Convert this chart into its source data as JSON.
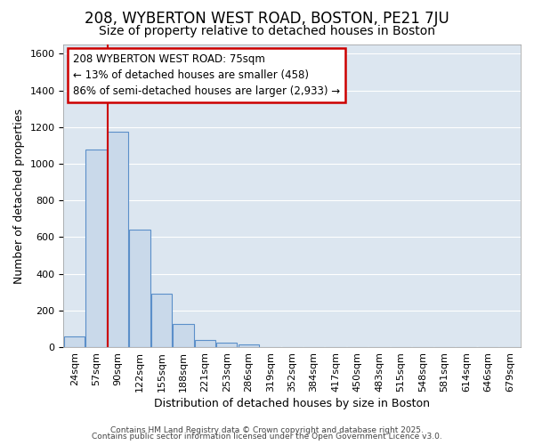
{
  "title1": "208, WYBERTON WEST ROAD, BOSTON, PE21 7JU",
  "title2": "Size of property relative to detached houses in Boston",
  "xlabel": "Distribution of detached houses by size in Boston",
  "ylabel": "Number of detached properties",
  "bin_labels": [
    "24sqm",
    "57sqm",
    "90sqm",
    "122sqm",
    "155sqm",
    "188sqm",
    "221sqm",
    "253sqm",
    "286sqm",
    "319sqm",
    "352sqm",
    "384sqm",
    "417sqm",
    "450sqm",
    "483sqm",
    "515sqm",
    "548sqm",
    "581sqm",
    "614sqm",
    "646sqm",
    "679sqm"
  ],
  "bar_heights": [
    60,
    1080,
    1175,
    640,
    290,
    125,
    40,
    25,
    15,
    0,
    0,
    0,
    0,
    0,
    0,
    0,
    0,
    0,
    0,
    0,
    0
  ],
  "bar_color": "#c9d9ea",
  "bar_edge_color": "#5b8fc9",
  "red_line_x": 75,
  "ylim": [
    0,
    1650
  ],
  "yticks": [
    0,
    200,
    400,
    600,
    800,
    1000,
    1200,
    1400,
    1600
  ],
  "annotation_box_text": "208 WYBERTON WEST ROAD: 75sqm\n← 13% of detached houses are smaller (458)\n86% of semi-detached houses are larger (2,933) →",
  "box_color": "white",
  "box_edge_color": "#cc0000",
  "background_color": "#dce6f0",
  "grid_color": "#c0cfe0",
  "footer1": "Contains HM Land Registry data © Crown copyright and database right 2025.",
  "footer2": "Contains public sector information licensed under the Open Government Licence v3.0.",
  "title1_fontsize": 12,
  "title2_fontsize": 10,
  "xlabel_fontsize": 9,
  "ylabel_fontsize": 9,
  "tick_fontsize": 8,
  "annotation_fontsize": 8.5
}
